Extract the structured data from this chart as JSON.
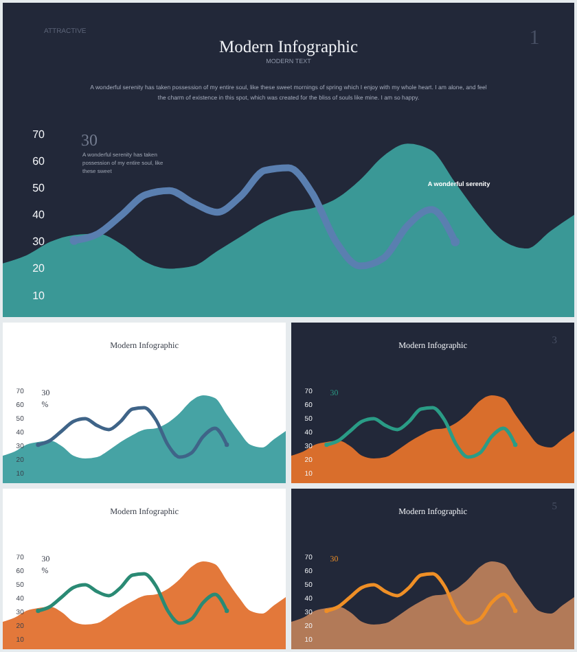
{
  "chart_data": [
    {
      "type": "area",
      "title": "Modern Infographic",
      "subtitle": "MODERN TEXT",
      "annotations": [
        "ATTRACTIVE",
        "1",
        "A wonderful serenity has taken possession of my entire soul, like these sweet mornings of spring which I enjoy with my whole heart. I am alone, and feel\nthe charm of existence in this spot, which was created for the bliss of souls like mine. I am so happy.",
        "30",
        "A wonderful serenity has taken\npossession of my entire soul, like\nthese sweet",
        "A wonderful serenity"
      ],
      "categories": [
        null,
        null,
        null,
        null,
        null,
        null,
        null,
        null,
        null,
        null,
        null,
        null,
        null,
        null,
        null,
        null,
        null,
        null,
        null,
        null,
        null,
        null,
        null,
        null,
        null
      ],
      "series": [
        {
          "color": "#3a9896",
          "values": [
            22,
            25,
            30,
            32.5,
            33,
            29,
            22.5,
            20,
            21,
            26.5,
            32,
            37.5,
            41,
            42.5,
            46,
            53,
            62,
            66.5,
            64,
            52,
            40,
            30.5,
            27.5,
            34,
            40
          ]
        },
        {
          "type": "line",
          "color": "#5a7fb0",
          "values": [
            null,
            null,
            null,
            30.5,
            33,
            40,
            47.5,
            49,
            44.5,
            41,
            47,
            56.5,
            57.5,
            48,
            30,
            21,
            24,
            36,
            42,
            30,
            null,
            null,
            null,
            null,
            null
          ]
        },
        {
          "type": "scatter",
          "color": "#5a7fb0",
          "values": [
            null,
            null,
            null,
            30.5,
            null,
            null,
            null,
            null,
            null,
            null,
            null,
            null,
            null,
            null,
            null,
            null,
            null,
            null,
            null,
            30,
            null,
            null,
            null,
            null,
            null
          ]
        }
      ],
      "ylim": [
        2,
        75
      ],
      "yticks": [
        10,
        20,
        30,
        40,
        50,
        60,
        70
      ]
    },
    {
      "type": "area",
      "title": "Modern Infographic",
      "annotations": [
        "30",
        "%"
      ],
      "categories": [
        null,
        null,
        null,
        null,
        null,
        null,
        null,
        null,
        null,
        null,
        null,
        null,
        null,
        null,
        null,
        null,
        null,
        null,
        null,
        null,
        null,
        null,
        null,
        null,
        null
      ],
      "series": [
        {
          "color": "#46a3a4",
          "values": [
            22,
            25,
            30,
            32,
            33,
            29,
            22,
            20,
            21,
            26,
            32,
            37,
            41,
            42,
            46,
            53,
            62,
            66,
            64,
            52,
            40,
            30,
            28,
            34,
            40
          ]
        },
        {
          "type": "line",
          "color": "#3f6488",
          "values": [
            null,
            null,
            null,
            30,
            33,
            40,
            47,
            49,
            44,
            41,
            47,
            56,
            57,
            48,
            30,
            21,
            24,
            36,
            42,
            30,
            null,
            null,
            null,
            null,
            null
          ]
        },
        {
          "type": "scatter",
          "color": "#3f6488",
          "values": [
            null,
            null,
            null,
            30,
            null,
            null,
            null,
            null,
            null,
            null,
            null,
            null,
            null,
            null,
            null,
            null,
            null,
            null,
            null,
            30,
            null,
            null,
            null,
            null,
            null
          ]
        }
      ],
      "ylim": [
        2,
        75
      ],
      "yticks": [
        10,
        20,
        30,
        40,
        50,
        60,
        70
      ]
    },
    {
      "type": "area",
      "title": "Modern Infographic",
      "annotations": [
        "3",
        "30"
      ],
      "categories": [
        null,
        null,
        null,
        null,
        null,
        null,
        null,
        null,
        null,
        null,
        null,
        null,
        null,
        null,
        null,
        null,
        null,
        null,
        null,
        null,
        null,
        null,
        null,
        null,
        null
      ],
      "series": [
        {
          "color": "#d96e2c",
          "values": [
            22,
            25,
            30,
            32,
            33,
            29,
            22,
            20,
            21,
            26,
            32,
            37,
            41,
            42,
            46,
            53,
            62,
            66,
            64,
            52,
            40,
            30,
            28,
            34,
            40
          ]
        },
        {
          "type": "line",
          "color": "#2a9c86",
          "values": [
            null,
            null,
            null,
            30,
            33,
            40,
            47,
            49,
            44,
            41,
            47,
            56,
            57,
            48,
            30,
            21,
            24,
            36,
            42,
            30,
            null,
            null,
            null,
            null,
            null
          ]
        },
        {
          "type": "scatter",
          "color": "#2a9c86",
          "values": [
            null,
            null,
            null,
            30,
            null,
            null,
            null,
            null,
            null,
            null,
            null,
            null,
            null,
            null,
            null,
            null,
            null,
            null,
            null,
            30,
            null,
            null,
            null,
            null,
            null
          ]
        }
      ],
      "ylim": [
        2,
        75
      ],
      "yticks": [
        10,
        20,
        30,
        40,
        50,
        60,
        70
      ]
    },
    {
      "type": "area",
      "title": "Modern Infographic",
      "annotations": [
        "30",
        "%"
      ],
      "categories": [
        null,
        null,
        null,
        null,
        null,
        null,
        null,
        null,
        null,
        null,
        null,
        null,
        null,
        null,
        null,
        null,
        null,
        null,
        null,
        null,
        null,
        null,
        null,
        null,
        null
      ],
      "series": [
        {
          "color": "#e3783a",
          "values": [
            22,
            25,
            30,
            32,
            33,
            29,
            22,
            20,
            21,
            26,
            32,
            37,
            41,
            42,
            46,
            53,
            62,
            66,
            64,
            52,
            40,
            30,
            28,
            34,
            40
          ]
        },
        {
          "type": "line",
          "color": "#2a8a74",
          "values": [
            null,
            null,
            null,
            30,
            33,
            40,
            47,
            49,
            44,
            41,
            47,
            56,
            57,
            48,
            30,
            21,
            24,
            36,
            42,
            30,
            null,
            null,
            null,
            null,
            null
          ]
        },
        {
          "type": "scatter",
          "color": "#2a8a74",
          "values": [
            null,
            null,
            null,
            30,
            null,
            null,
            null,
            null,
            null,
            null,
            null,
            null,
            null,
            null,
            null,
            null,
            null,
            null,
            null,
            30,
            null,
            null,
            null,
            null,
            null
          ]
        }
      ],
      "ylim": [
        2,
        75
      ],
      "yticks": [
        10,
        20,
        30,
        40,
        50,
        60,
        70
      ]
    },
    {
      "type": "area",
      "title": "Modern Infographic",
      "annotations": [
        "5",
        "30"
      ],
      "categories": [
        null,
        null,
        null,
        null,
        null,
        null,
        null,
        null,
        null,
        null,
        null,
        null,
        null,
        null,
        null,
        null,
        null,
        null,
        null,
        null,
        null,
        null,
        null,
        null,
        null
      ],
      "series": [
        {
          "color": "#b27a58",
          "values": [
            22,
            25,
            30,
            32,
            33,
            29,
            22,
            20,
            21,
            26,
            32,
            37,
            41,
            42,
            46,
            53,
            62,
            66,
            64,
            52,
            40,
            30,
            28,
            34,
            40
          ]
        },
        {
          "type": "line",
          "color": "#ef8f26",
          "values": [
            null,
            null,
            null,
            30,
            33,
            40,
            47,
            49,
            44,
            41,
            47,
            56,
            57,
            48,
            30,
            21,
            24,
            36,
            42,
            30,
            null,
            null,
            null,
            null,
            null
          ]
        },
        {
          "type": "scatter",
          "color": "#ef8f26",
          "values": [
            null,
            null,
            null,
            30,
            null,
            null,
            null,
            null,
            null,
            null,
            null,
            null,
            null,
            null,
            null,
            null,
            null,
            null,
            null,
            30,
            null,
            null,
            null,
            null,
            null
          ]
        }
      ],
      "ylim": [
        2,
        75
      ],
      "yticks": [
        10,
        20,
        30,
        40,
        50,
        60,
        70
      ]
    }
  ]
}
